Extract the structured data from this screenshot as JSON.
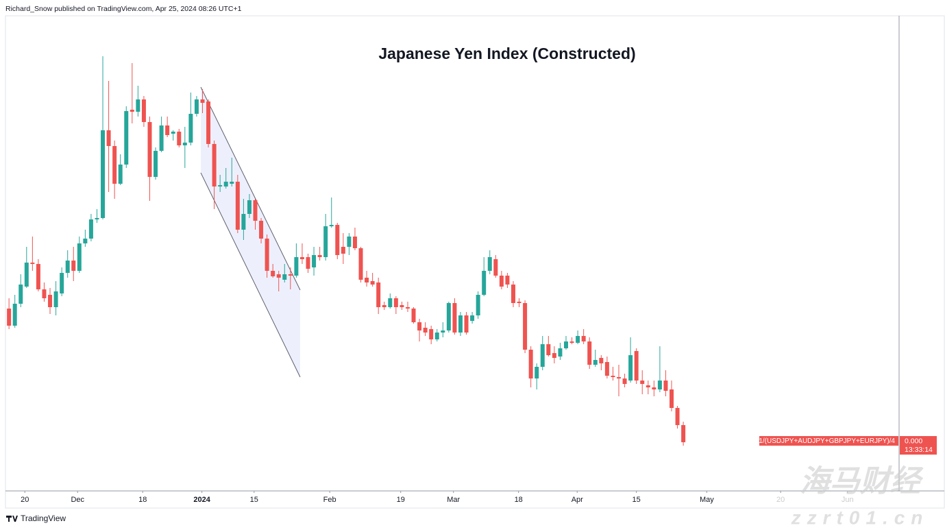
{
  "header": {
    "byline": "Richard_Snow published on TradingView.com, Apr 25, 2024 08:26 UTC+1"
  },
  "chart_data": {
    "type": "candlestick",
    "title": "Japanese Yen Index (Constructed)",
    "series": {
      "name": "1/(USDJPY+AUDJPY+GBPJPY+EURJPY)/4",
      "up_color": "#26a69a",
      "down_color": "#ef5350",
      "open": [
        265,
        240,
        272,
        297,
        332,
        330,
        293,
        285,
        267,
        287,
        317,
        335,
        320,
        360,
        367,
        395,
        397,
        525,
        502,
        447,
        475,
        555,
        552,
        570,
        537,
        457,
        495,
        532,
        520,
        523,
        503,
        507,
        549,
        570,
        567,
        505,
        443,
        443,
        447,
        450,
        380,
        403,
        423,
        393,
        367,
        320,
        315,
        307,
        315,
        313,
        340,
        340,
        325,
        343,
        340,
        385,
        387,
        355,
        355,
        370,
        353,
        310,
        305,
        303,
        270,
        267,
        280,
        270,
        267,
        265,
        245,
        237,
        235,
        220,
        230,
        233,
        273,
        230,
        255,
        247,
        255,
        285,
        320,
        337,
        313,
        313,
        300,
        275,
        273,
        205,
        163,
        180,
        213,
        200,
        195,
        207,
        217,
        215,
        225,
        217,
        183,
        193,
        187,
        167,
        165,
        163,
        160,
        203,
        160,
        153,
        150,
        147,
        160,
        147,
        120,
        95
      ],
      "high": [
        280,
        285,
        315,
        355,
        370,
        337,
        303,
        295,
        305,
        325,
        350,
        355,
        370,
        380,
        403,
        410,
        633,
        597,
        510,
        490,
        560,
        623,
        590,
        575,
        545,
        500,
        545,
        545,
        525,
        527,
        530,
        580,
        575,
        585,
        570,
        510,
        460,
        470,
        485,
        460,
        425,
        432,
        425,
        397,
        373,
        330,
        320,
        330,
        325,
        360,
        360,
        345,
        355,
        355,
        403,
        427,
        390,
        375,
        375,
        383,
        355,
        320,
        317,
        310,
        275,
        287,
        283,
        275,
        275,
        267,
        250,
        245,
        240,
        235,
        245,
        275,
        280,
        260,
        260,
        260,
        290,
        340,
        350,
        343,
        320,
        317,
        305,
        280,
        277,
        210,
        185,
        225,
        225,
        210,
        215,
        225,
        223,
        233,
        235,
        223,
        205,
        197,
        195,
        180,
        183,
        170,
        223,
        207,
        175,
        160,
        160,
        210,
        175,
        160,
        123,
        100
      ],
      "low": [
        235,
        237,
        267,
        295,
        320,
        290,
        275,
        257,
        255,
        283,
        310,
        305,
        317,
        355,
        363,
        390,
        395,
        435,
        425,
        445,
        470,
        535,
        545,
        530,
        422,
        453,
        493,
        515,
        510,
        500,
        470,
        503,
        545,
        550,
        500,
        410,
        435,
        440,
        443,
        375,
        365,
        397,
        380,
        360,
        310,
        310,
        290,
        303,
        293,
        310,
        330,
        317,
        313,
        335,
        335,
        383,
        337,
        330,
        343,
        350,
        303,
        297,
        297,
        257,
        263,
        265,
        257,
        263,
        260,
        243,
        217,
        225,
        213,
        217,
        223,
        230,
        227,
        225,
        227,
        243,
        250,
        283,
        315,
        310,
        293,
        295,
        267,
        267,
        200,
        150,
        147,
        175,
        195,
        185,
        190,
        205,
        213,
        213,
        213,
        177,
        180,
        175,
        163,
        160,
        137,
        150,
        157,
        155,
        140,
        140,
        137,
        143,
        137,
        115,
        90,
        65
      ],
      "close": [
        240,
        272,
        300,
        332,
        330,
        293,
        280,
        267,
        290,
        317,
        335,
        320,
        360,
        367,
        395,
        397,
        525,
        502,
        447,
        475,
        553,
        552,
        570,
        537,
        457,
        495,
        532,
        518,
        523,
        503,
        507,
        549,
        570,
        565,
        505,
        443,
        445,
        450,
        450,
        380,
        403,
        423,
        393,
        367,
        320,
        312,
        310,
        315,
        313,
        340,
        337,
        323,
        343,
        340,
        385,
        387,
        343,
        345,
        370,
        353,
        307,
        303,
        300,
        267,
        267,
        280,
        267,
        267,
        265,
        245,
        233,
        230,
        220,
        230,
        233,
        273,
        230,
        255,
        230,
        255,
        285,
        320,
        340,
        313,
        297,
        300,
        273,
        273,
        205,
        163,
        180,
        213,
        197,
        193,
        207,
        217,
        215,
        225,
        217,
        183,
        190,
        185,
        167,
        165,
        163,
        155,
        197,
        160,
        155,
        150,
        147,
        160,
        145,
        120,
        95,
        70
      ]
    },
    "price_label": "0.000",
    "countdown": "13:33:14",
    "xlim": [
      -0.6,
      151.8
    ],
    "ylim": [
      0,
      695
    ],
    "xticks": [
      {
        "value": 2.7,
        "label": "20"
      },
      {
        "value": 11.7,
        "label": "Dec"
      },
      {
        "value": 22.8,
        "label": "18"
      },
      {
        "value": 32.9,
        "label": "2024"
      },
      {
        "value": 41.8,
        "label": "15"
      },
      {
        "value": 54.7,
        "label": "Feb"
      },
      {
        "value": 66.8,
        "label": "19"
      },
      {
        "value": 75.8,
        "label": "Mar"
      },
      {
        "value": 86.9,
        "label": "18"
      },
      {
        "value": 96.9,
        "label": "Apr"
      },
      {
        "value": 107,
        "label": "15"
      },
      {
        "value": 119,
        "label": "May"
      },
      {
        "value": 131.6,
        "label": "20"
      },
      {
        "value": 143,
        "label": "Jun"
      }
    ]
  },
  "footer": {
    "logo": "TradingView"
  },
  "watermark": {
    "chinese": "海马财经",
    "site": "zzrt01.cn"
  }
}
